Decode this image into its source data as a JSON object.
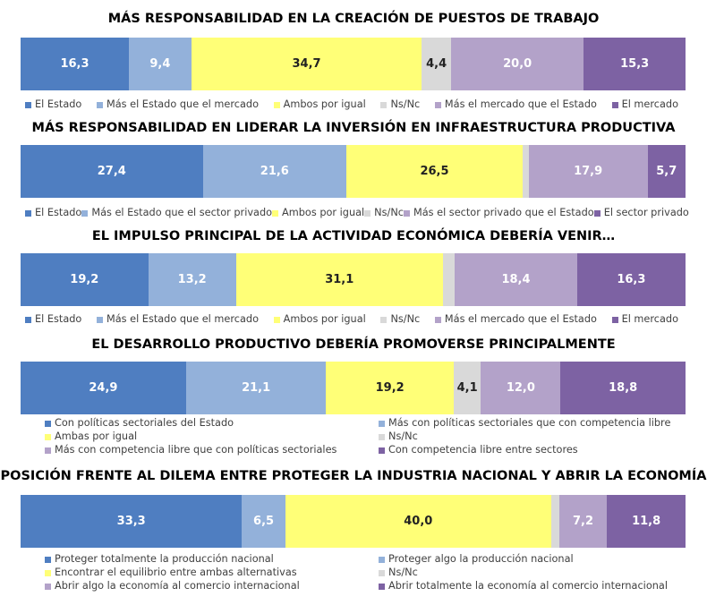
{
  "colors": [
    "#4f7ec1",
    "#93b1da",
    "#ffff77",
    "#d9d9d9",
    "#b3a2c9",
    "#7d62a3"
  ],
  "label_colors": [
    "#ffffff",
    "#ffffff",
    "#222222",
    "#222222",
    "#ffffff",
    "#ffffff"
  ],
  "chart_data": [
    {
      "type": "bar",
      "orientation": "horizontal",
      "stacked": "100%",
      "title": "MÁS RESPONSABILIDAD EN LA CREACIÓN DE PUESTOS DE TRABAJO",
      "categories": [
        "El Estado",
        "Más el Estado que el mercado",
        "Ambos por igual",
        "Ns/Nc",
        "Más el mercado que el Estado",
        "El mercado"
      ],
      "values": [
        16.3,
        9.4,
        34.7,
        4.4,
        20.0,
        15.3
      ],
      "labels": [
        "16,3",
        "9,4",
        "34,7",
        "4,4",
        "20,0",
        "15,3"
      ],
      "legend": "bottom-row"
    },
    {
      "type": "bar",
      "orientation": "horizontal",
      "stacked": "100%",
      "title": "MÁS RESPONSABILIDAD EN LIDERAR LA INVERSIÓN EN INFRAESTRUCTURA PRODUCTIVA",
      "categories": [
        "El Estado",
        "Más el Estado que el sector privado",
        "Ambos por igual",
        "Ns/Nc",
        "Más el sector privado que el Estado",
        "El sector privado"
      ],
      "values": [
        27.4,
        21.6,
        26.5,
        0.9,
        17.9,
        5.7
      ],
      "labels": [
        "27,4",
        "21,6",
        "26,5",
        "",
        "17,9",
        "5,7"
      ],
      "legend": "bottom-row"
    },
    {
      "type": "bar",
      "orientation": "horizontal",
      "stacked": "100%",
      "title": "EL IMPULSO PRINCIPAL DE LA ACTIVIDAD ECONÓMICA DEBERÍA VENIR…",
      "categories": [
        "El Estado",
        "Más el Estado que el mercado",
        "Ambos por igual",
        "Ns/Nc",
        "Más el mercado que el Estado",
        "El mercado"
      ],
      "values": [
        19.2,
        13.2,
        31.1,
        1.8,
        18.4,
        16.3
      ],
      "labels": [
        "19,2",
        "13,2",
        "31,1",
        "",
        "18,4",
        "16,3"
      ],
      "legend": "bottom-row"
    },
    {
      "type": "bar",
      "orientation": "horizontal",
      "stacked": "100%",
      "title": "EL DESARROLLO PRODUCTIVO DEBERÍA PROMOVERSE PRINCIPALMENTE",
      "categories": [
        "Con políticas sectoriales del Estado",
        "Más con políticas sectoriales que con competencia libre",
        "Ambas por igual",
        "Ns/Nc",
        "Más con competencia libre que con políticas sectoriales",
        "Con competencia libre entre sectores"
      ],
      "values": [
        24.9,
        21.1,
        19.2,
        4.1,
        12.0,
        18.8
      ],
      "labels": [
        "24,9",
        "21,1",
        "19,2",
        "4,1",
        "12,0",
        "18,8"
      ],
      "legend": "bottom-grid"
    },
    {
      "type": "bar",
      "orientation": "horizontal",
      "stacked": "100%",
      "title": "POSICIÓN FRENTE AL DILEMA ENTRE PROTEGER LA INDUSTRIA NACIONAL Y ABRIR LA ECONOMÍA",
      "categories": [
        "Proteger totalmente la producción nacional",
        "Proteger algo la producción nacional",
        "Encontrar el equilibrio entre ambas alternativas",
        "Ns/Nc",
        "Abrir algo la economía al comercio internacional",
        "Abrir totalmente la economía al comercio internacional"
      ],
      "values": [
        33.3,
        6.5,
        40.0,
        1.2,
        7.2,
        11.8
      ],
      "labels": [
        "33,3",
        "6,5",
        "40,0",
        "",
        "7,2",
        "11,8"
      ],
      "legend": "bottom-grid"
    }
  ]
}
